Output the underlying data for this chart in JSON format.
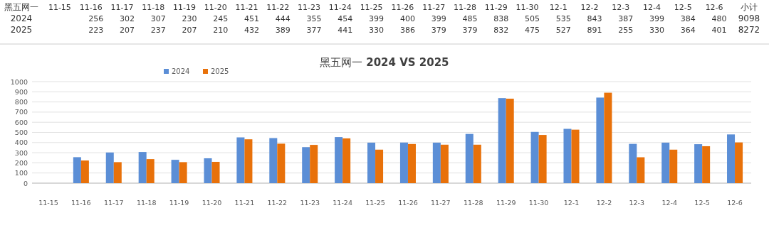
{
  "chart_data": {
    "type": "bar",
    "title": "黑五网一 **2024 VS 2025**",
    "categories": [
      "11-15",
      "11-16",
      "11-17",
      "11-18",
      "11-19",
      "11-20",
      "11-21",
      "11-22",
      "11-23",
      "11-24",
      "11-25",
      "11-26",
      "11-27",
      "11-28",
      "11-29",
      "11-30",
      "12-1",
      "12-2",
      "12-3",
      "12-4",
      "12-5",
      "12-6"
    ],
    "series": [
      {
        "name": "2024",
        "color": "#5b8ed6",
        "values": [
          null,
          256,
          302,
          307,
          230,
          245,
          451,
          444,
          355,
          454,
          399,
          400,
          399,
          485,
          838,
          505,
          535,
          843,
          387,
          399,
          384,
          480
        ]
      },
      {
        "name": "2025",
        "color": "#e8710a",
        "values": [
          null,
          223,
          207,
          237,
          207,
          210,
          432,
          389,
          377,
          441,
          330,
          386,
          379,
          379,
          832,
          475,
          527,
          891,
          255,
          330,
          364,
          401
        ]
      }
    ],
    "ylim": [
      0,
      1000
    ],
    "yticks": [
      0,
      100,
      200,
      300,
      400,
      500,
      600,
      700,
      800,
      900,
      1000
    ],
    "grid": "y",
    "legend": "top left",
    "data_labels": true,
    "annotations": [
      "黑五网一",
      "小计",
      "9098",
      "8272"
    ]
  }
}
